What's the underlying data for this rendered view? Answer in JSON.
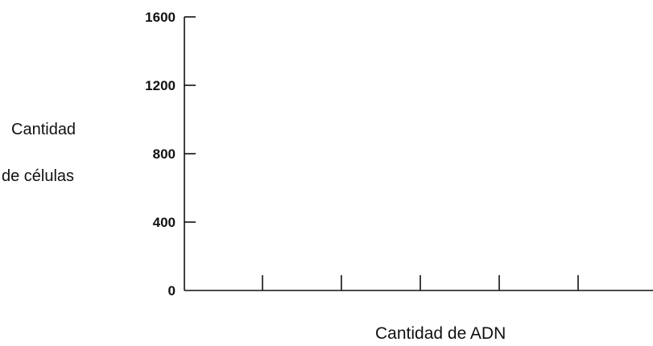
{
  "chart_data": {
    "type": "bar",
    "title": "",
    "xlabel": "Cantidad de ADN",
    "ylabel_lines": [
      "Cantidad",
      "de células"
    ],
    "yticks": [
      0,
      400,
      800,
      1200,
      1600
    ],
    "ylim": [
      0,
      1600
    ],
    "x_tick_count": 5,
    "categories": [],
    "values": [],
    "grid": false
  }
}
